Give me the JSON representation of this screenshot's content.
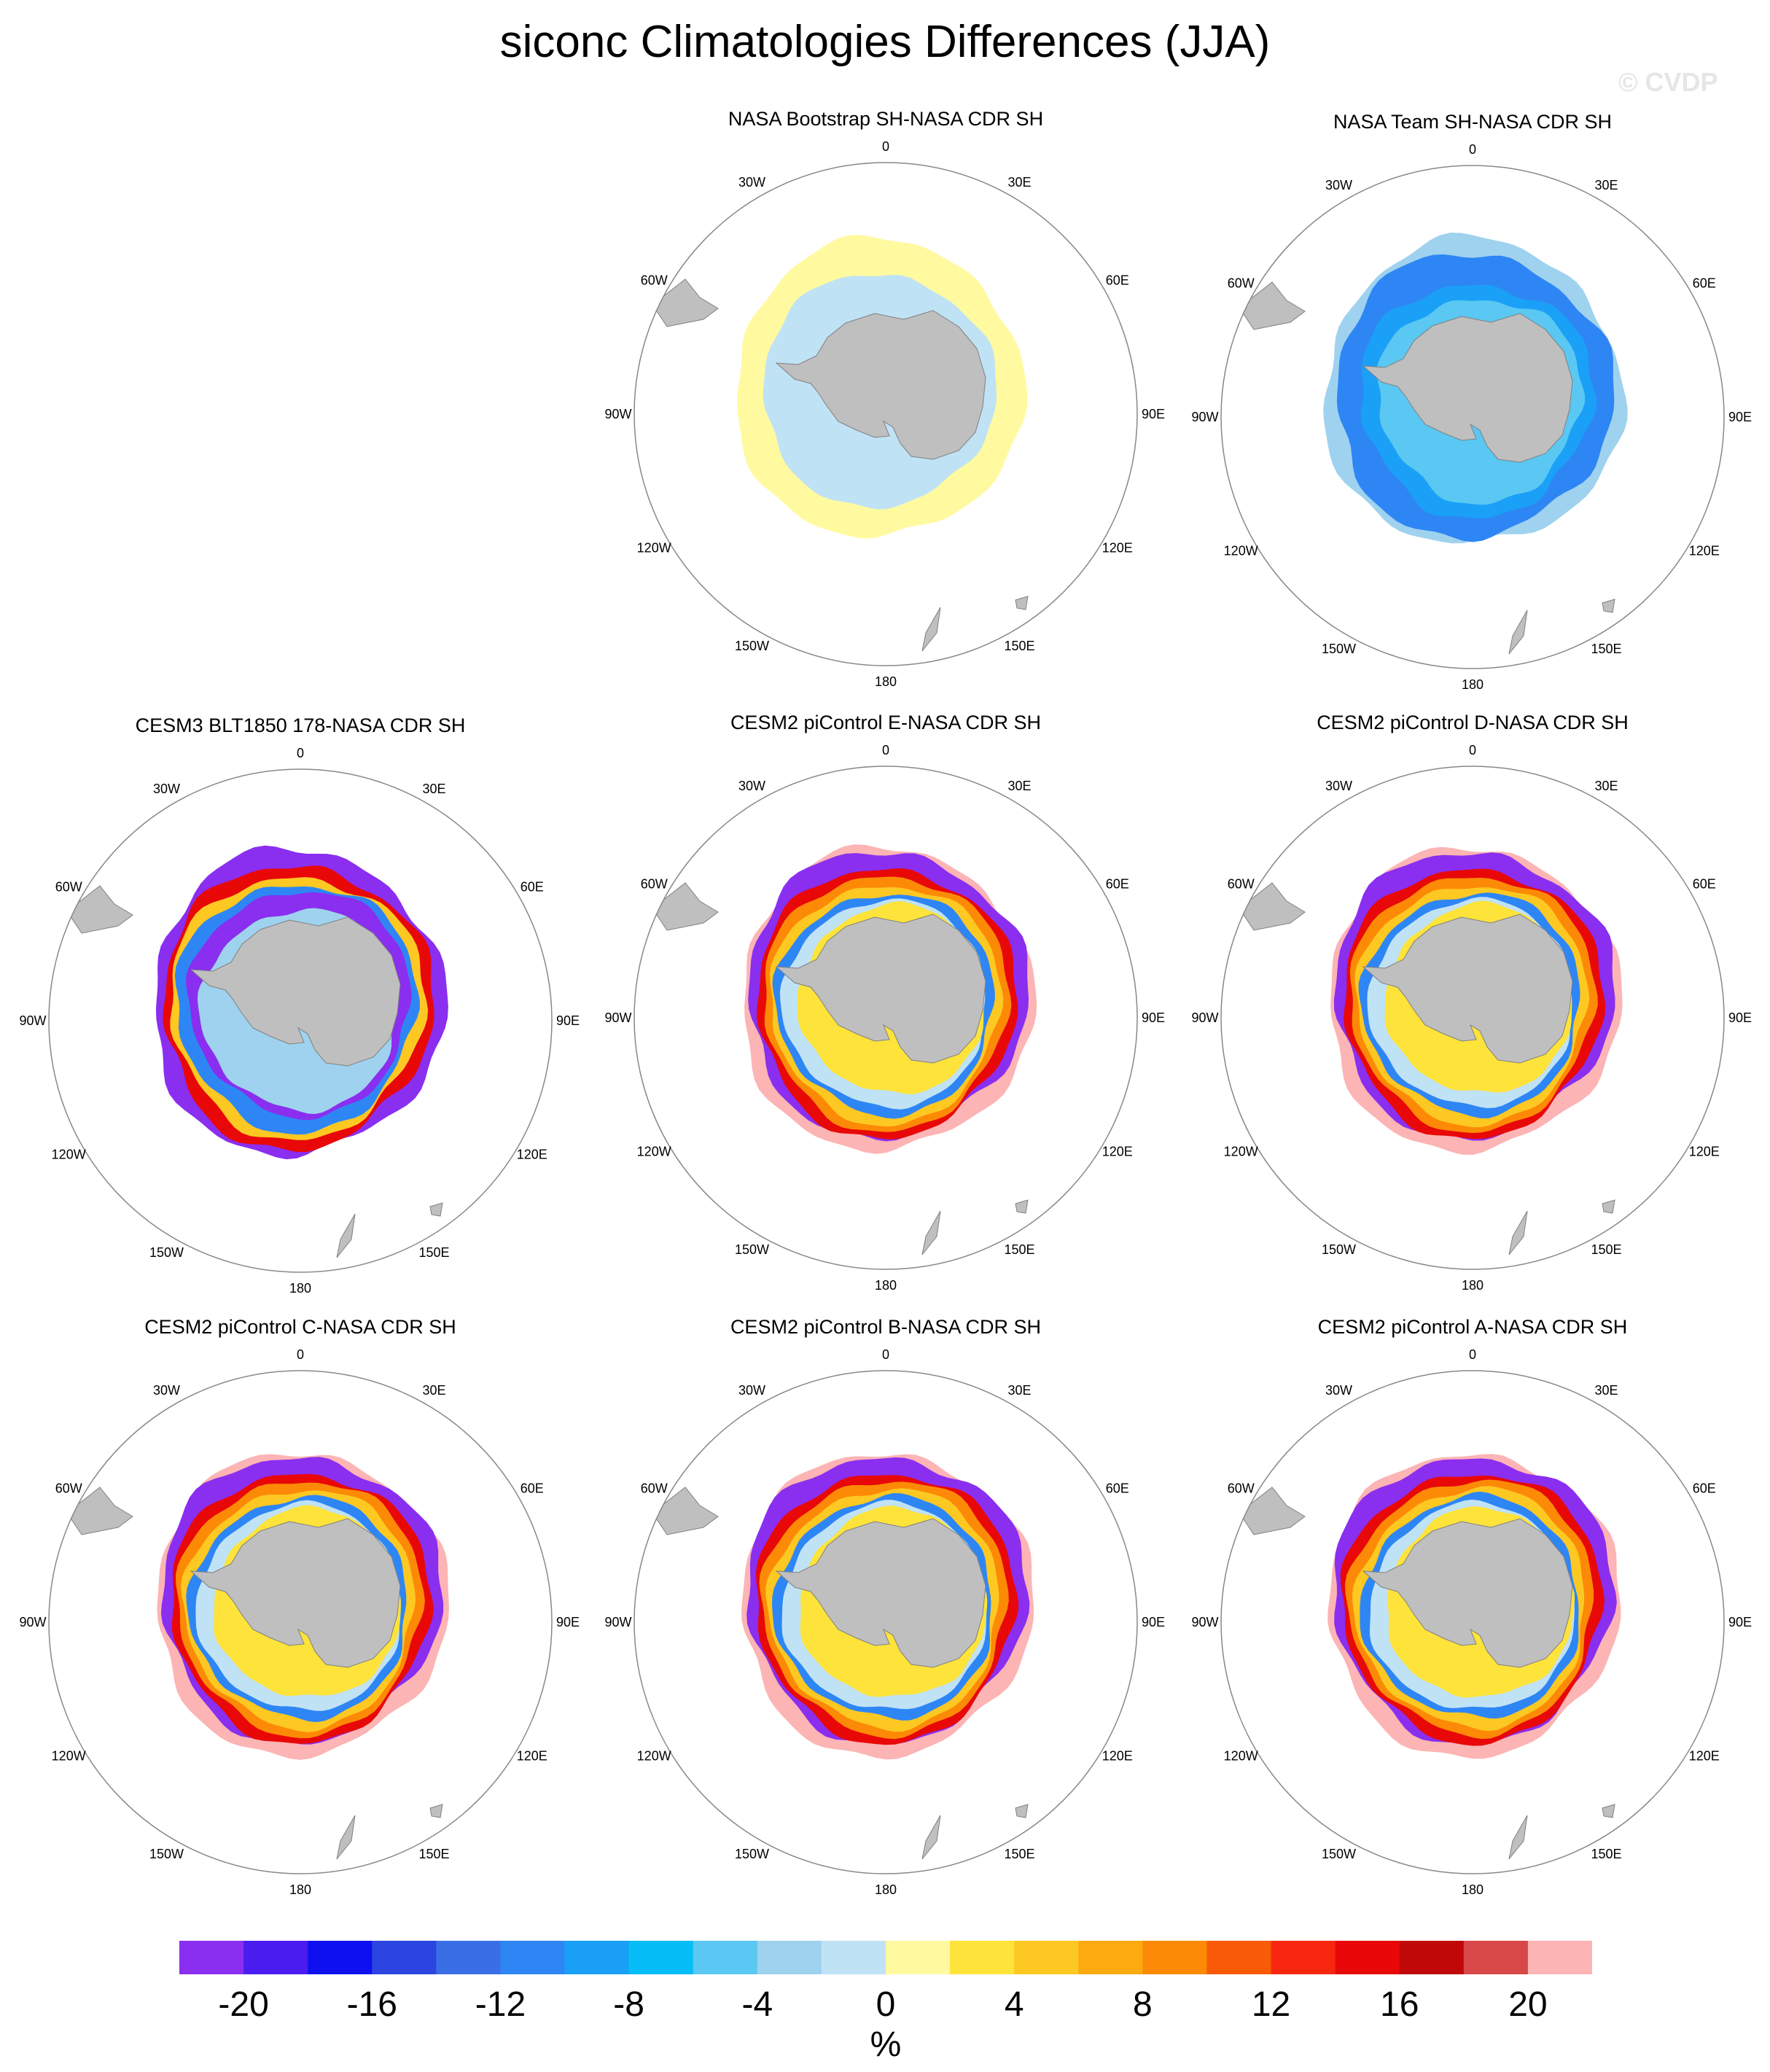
{
  "title": "siconc Climatologies Differences (JJA)",
  "watermark": "© CVDP",
  "longitude_labels": [
    "0",
    "30E",
    "60E",
    "90E",
    "120E",
    "150E",
    "180",
    "150W",
    "120W",
    "90W",
    "60W",
    "30W"
  ],
  "panels": [
    {
      "title": "NASA Bootstrap SH-NASA CDR SH",
      "style": "bootstrap"
    },
    {
      "title": "NASA Team SH-NASA CDR SH",
      "style": "team"
    },
    {
      "title": "CESM3 BLT1850 178-NASA CDR SH",
      "style": "cesm3"
    },
    {
      "title": "CESM2 piControl E-NASA CDR SH",
      "style": "cesm2"
    },
    {
      "title": "CESM2 piControl D-NASA CDR SH",
      "style": "cesm2"
    },
    {
      "title": "CESM2 piControl C-NASA CDR SH",
      "style": "cesm2"
    },
    {
      "title": "CESM2 piControl B-NASA CDR SH",
      "style": "cesm2"
    },
    {
      "title": "CESM2 piControl A-NASA CDR SH",
      "style": "cesm2"
    }
  ],
  "colorbar": {
    "units": "%",
    "tick_labels": [
      "-20",
      "-16",
      "-12",
      "-8",
      "-4",
      "0",
      "4",
      "8",
      "12",
      "16",
      "20"
    ],
    "colors": [
      "#8a2ef0",
      "#4b1cf0",
      "#0f10f0",
      "#2c44e0",
      "#3a6ee6",
      "#2e86f5",
      "#1aa0f7",
      "#06bdf7",
      "#5ac8f2",
      "#9fd2ee",
      "#c0e2f5",
      "#fffaa0",
      "#fde33a",
      "#fdc822",
      "#fcaa10",
      "#fc8a06",
      "#f85a08",
      "#f82810",
      "#e80808",
      "#c00808",
      "#d84848",
      "#fcb4b4"
    ]
  }
}
